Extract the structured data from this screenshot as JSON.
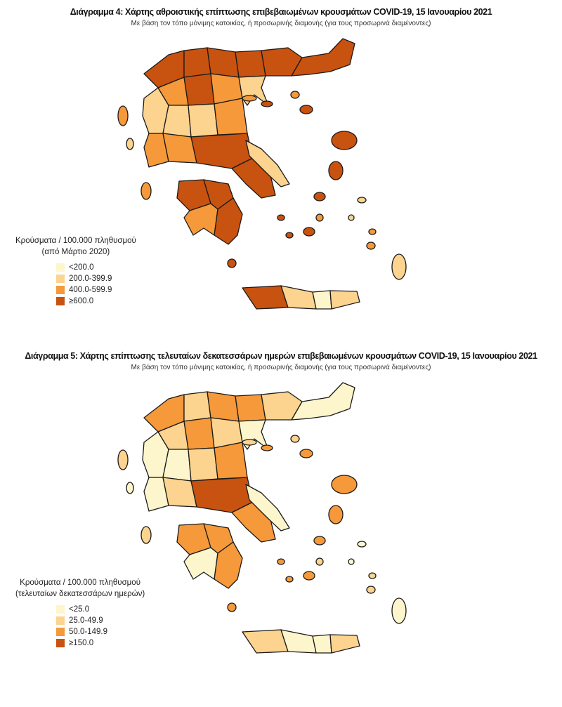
{
  "palette": [
    "#fdf6cc",
    "#fcd38f",
    "#f5993a",
    "#c8520f"
  ],
  "map1": {
    "title": "Διάγραμμα 4: Χάρτης αθροιστικής επίπτωσης επιβεβαιωμένων κρουσμάτων COVID-19, 15 Ιανουαρίου 2021",
    "subtitle": "Με βάση τον τόπο μόνιμης κατοικίας, ή προσωρινής διαμονής (για τους προσωρινά διαμένοντες)",
    "legend_title_1": "Κρούσματα / 100.000 πληθυσμού",
    "legend_title_2": "(από Μάρτιο 2020)",
    "legend": [
      "<200.0",
      "200.0-399.9",
      "400.0-599.9",
      "≥600.0"
    ],
    "region_classes": [
      3,
      3,
      3,
      3,
      3,
      3,
      1,
      2,
      3,
      2,
      2,
      1,
      1,
      2,
      2,
      3,
      1,
      3,
      3,
      3,
      2,
      3,
      3,
      1,
      0,
      1
    ]
  },
  "map2": {
    "title": "Διάγραμμα 5: Χάρτης επίπτωσης τελευταίων δεκατεσσάρων ημερών επιβεβαιωμένων κρουσμάτων COVID-19, 15 Ιανουαρίου 2021",
    "subtitle": "Με βάση τον τόπο μόνιμης κατοικίας, ή προσωρινής διαμονής (για τους προσωρινά διαμένοντες)",
    "legend_title_1": "Κρούσματα / 100.000 πληθυσμού",
    "legend_title_2": "(τελευταίων δεκατεσσάρων ημερών)",
    "legend": [
      "<25.0",
      "25.0-49.9",
      "50.0-149.9",
      "≥150.0"
    ],
    "region_classes": [
      2,
      1,
      2,
      2,
      1,
      0,
      0,
      1,
      2,
      1,
      0,
      0,
      1,
      2,
      1,
      3,
      0,
      2,
      2,
      2,
      0,
      2,
      1,
      0,
      0,
      1
    ]
  }
}
